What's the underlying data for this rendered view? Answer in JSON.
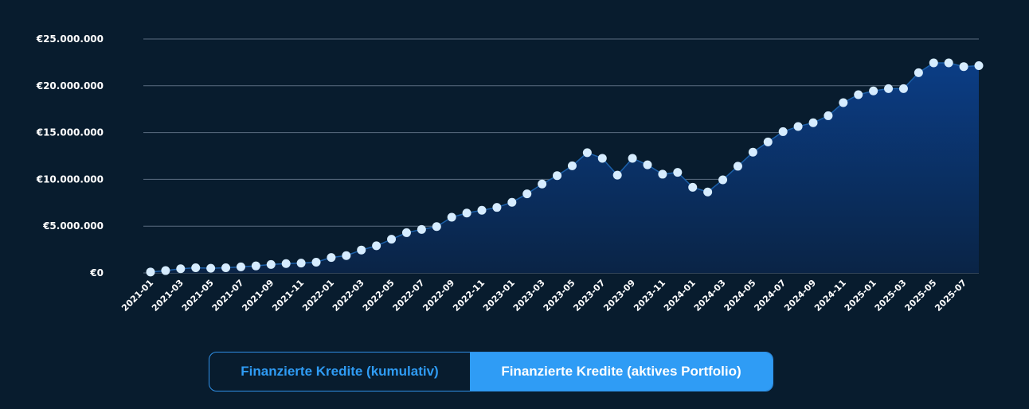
{
  "chart_data": {
    "type": "area",
    "title": "",
    "xlabel": "",
    "ylabel": "",
    "ylim": [
      0,
      25000000
    ],
    "y_ticks": [
      "€25.000.000",
      "€20.000.000",
      "€15.000.000",
      "€10.000.000",
      "€5.000.000",
      "€0"
    ],
    "x_tick_labels": [
      "2021-01",
      "2021-03",
      "2021-05",
      "2021-07",
      "2021-09",
      "2021-11",
      "2022-01",
      "2022-03",
      "2022-05",
      "2022-07",
      "2022-09",
      "2022-11",
      "2023-01",
      "2023-03",
      "2023-05",
      "2023-07",
      "2023-09",
      "2023-11",
      "2024-01",
      "2024-03",
      "2024-05",
      "2024-07",
      "2024-09",
      "2024-11",
      "2025-01",
      "2025-03",
      "2025-05",
      "2025-07"
    ],
    "grid": true,
    "colors": {
      "line": "#1b5fa8",
      "marker": "#d6ecff",
      "area_top": "#0b3d85",
      "area_bottom": "#0a2446",
      "grid": "#5a6c80"
    },
    "x": [
      "2021-01",
      "2021-02",
      "2021-03",
      "2021-04",
      "2021-05",
      "2021-06",
      "2021-07",
      "2021-08",
      "2021-09",
      "2021-10",
      "2021-11",
      "2021-12",
      "2022-01",
      "2022-02",
      "2022-03",
      "2022-04",
      "2022-05",
      "2022-06",
      "2022-07",
      "2022-08",
      "2022-09",
      "2022-10",
      "2022-11",
      "2022-12",
      "2023-01",
      "2023-02",
      "2023-03",
      "2023-04",
      "2023-05",
      "2023-06",
      "2023-07",
      "2023-08",
      "2023-09",
      "2023-10",
      "2023-11",
      "2023-12",
      "2024-01",
      "2024-02",
      "2024-03",
      "2024-04",
      "2024-05",
      "2024-06",
      "2024-07",
      "2024-08",
      "2024-09",
      "2024-10",
      "2024-11",
      "2024-12",
      "2025-01",
      "2025-02",
      "2025-03",
      "2025-04",
      "2025-05",
      "2025-06",
      "2025-07",
      "2025-08"
    ],
    "series": [
      {
        "values": [
          100000,
          250000,
          450000,
          550000,
          500000,
          550000,
          650000,
          750000,
          900000,
          1000000,
          1050000,
          1150000,
          1650000,
          1850000,
          2450000,
          2900000,
          3600000,
          4300000,
          4650000,
          4950000,
          5950000,
          6400000,
          6700000,
          7000000,
          7550000,
          8450000,
          9500000,
          10400000,
          11450000,
          12850000,
          12250000,
          10450000,
          12250000,
          11550000,
          10550000,
          10750000,
          9150000,
          8650000,
          9950000,
          11400000,
          12900000,
          14000000,
          15100000,
          15650000,
          16050000,
          16800000,
          18200000,
          19050000,
          19450000,
          19700000,
          19700000,
          21400000,
          22450000,
          22450000,
          22050000,
          22150000
        ]
      }
    ]
  },
  "toggle": {
    "cumulative_label": "Finanzierte Kredite (kumulativ)",
    "active_label": "Finanzierte Kredite (aktives Portfolio)"
  }
}
